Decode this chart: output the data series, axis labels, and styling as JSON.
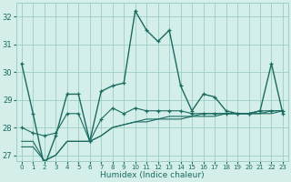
{
  "xlabel": "Humidex (Indice chaleur)",
  "background_color": "#d4eeea",
  "grid_color": "#9ecdc6",
  "line_color": "#1a6b60",
  "xlim": [
    0,
    23
  ],
  "ylim": [
    26.8,
    32.5
  ],
  "yticks": [
    27,
    28,
    29,
    30,
    31,
    32
  ],
  "xticks": [
    0,
    1,
    2,
    3,
    4,
    5,
    6,
    7,
    8,
    9,
    10,
    11,
    12,
    13,
    14,
    15,
    16,
    17,
    18,
    19,
    20,
    21,
    22,
    23
  ],
  "series": [
    {
      "y": [
        30.3,
        28.5,
        26.6,
        27.7,
        29.2,
        29.2,
        27.5,
        29.3,
        29.5,
        29.6,
        32.2,
        31.5,
        31.1,
        31.5,
        29.5,
        28.6,
        29.2,
        29.1,
        28.6,
        28.5,
        28.5,
        28.6,
        30.3,
        28.5
      ],
      "marker": "+",
      "lw": 1.0
    },
    {
      "y": [
        28.0,
        27.8,
        27.7,
        27.8,
        28.5,
        28.5,
        27.5,
        28.3,
        28.7,
        28.5,
        28.7,
        28.6,
        28.6,
        28.6,
        28.6,
        28.5,
        28.5,
        28.5,
        28.5,
        28.5,
        28.5,
        28.6,
        28.6,
        28.6
      ],
      "marker": "+",
      "lw": 0.8
    },
    {
      "y": [
        27.5,
        27.5,
        26.8,
        27.0,
        27.5,
        27.5,
        27.5,
        27.7,
        28.0,
        28.1,
        28.2,
        28.3,
        28.3,
        28.4,
        28.4,
        28.4,
        28.5,
        28.5,
        28.5,
        28.5,
        28.5,
        28.5,
        28.6,
        28.6
      ],
      "marker": null,
      "lw": 0.8
    },
    {
      "y": [
        27.3,
        27.3,
        26.8,
        27.0,
        27.5,
        27.5,
        27.5,
        27.7,
        28.0,
        28.1,
        28.2,
        28.2,
        28.3,
        28.3,
        28.3,
        28.4,
        28.4,
        28.4,
        28.5,
        28.5,
        28.5,
        28.5,
        28.5,
        28.6
      ],
      "marker": null,
      "lw": 0.8
    }
  ]
}
